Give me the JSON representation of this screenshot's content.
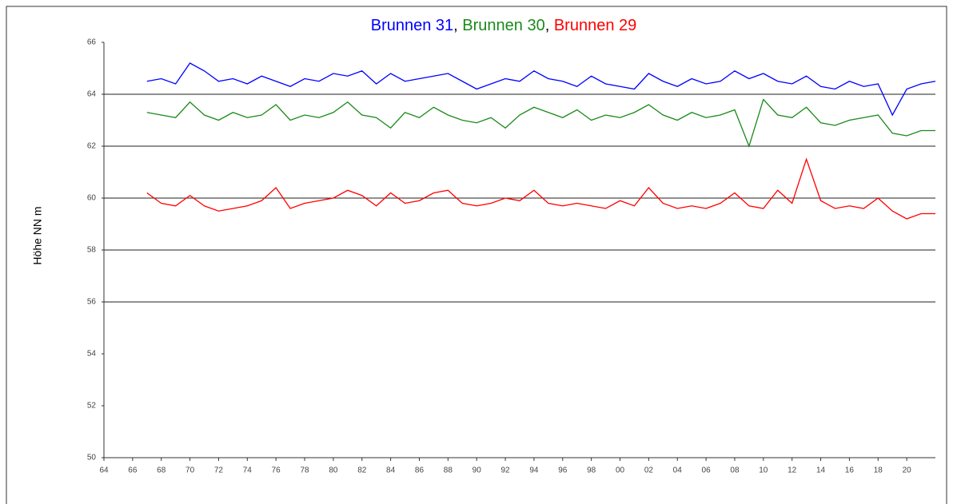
{
  "chart_data": {
    "type": "line",
    "title": "Brunnen 31, Brunnen 30, Brunnen 29",
    "ylabel": "Höhe NN m",
    "x": [
      1967,
      1968,
      1969,
      1970,
      1971,
      1972,
      1973,
      1974,
      1975,
      1976,
      1977,
      1978,
      1979,
      1980,
      1981,
      1982,
      1983,
      1984,
      1985,
      1986,
      1987,
      1988,
      1989,
      1990,
      1991,
      1992,
      1993,
      1994,
      1995,
      1996,
      1997,
      1998,
      1999,
      2000,
      2001,
      2002,
      2003,
      2004,
      2005,
      2006,
      2007,
      2008,
      2009,
      2010,
      2011,
      2012,
      2013,
      2014,
      2015,
      2016,
      2017,
      2018,
      2019,
      2020,
      2021,
      2022
    ],
    "series": [
      {
        "name": "Brunnen 31",
        "color": "#0000ff",
        "values": [
          64.5,
          64.6,
          64.4,
          65.2,
          64.9,
          64.5,
          64.6,
          64.4,
          64.7,
          64.5,
          64.3,
          64.6,
          64.5,
          64.8,
          64.7,
          64.9,
          64.4,
          64.8,
          64.5,
          64.6,
          64.7,
          64.8,
          64.5,
          64.2,
          64.4,
          64.6,
          64.5,
          64.9,
          64.6,
          64.5,
          64.3,
          64.7,
          64.4,
          64.3,
          64.2,
          64.8,
          64.5,
          64.3,
          64.6,
          64.4,
          64.5,
          64.9,
          64.6,
          64.8,
          64.5,
          64.4,
          64.7,
          64.3,
          64.2,
          64.5,
          64.3,
          64.4,
          63.2,
          64.2,
          64.4,
          64.5
        ]
      },
      {
        "name": "Brunnen 30",
        "color": "#1a8a1a",
        "values": [
          63.3,
          63.2,
          63.1,
          63.7,
          63.2,
          63.0,
          63.3,
          63.1,
          63.2,
          63.6,
          63.0,
          63.2,
          63.1,
          63.3,
          63.7,
          63.2,
          63.1,
          62.7,
          63.3,
          63.1,
          63.5,
          63.2,
          63.0,
          62.9,
          63.1,
          62.7,
          63.2,
          63.5,
          63.3,
          63.1,
          63.4,
          63.0,
          63.2,
          63.1,
          63.3,
          63.6,
          63.2,
          63.0,
          63.3,
          63.1,
          63.2,
          63.4,
          62.0,
          63.8,
          63.2,
          63.1,
          63.5,
          62.9,
          62.8,
          63.0,
          63.1,
          63.2,
          62.5,
          62.4,
          62.6,
          62.6
        ]
      },
      {
        "name": "Brunnen 29",
        "color": "#ff0000",
        "values": [
          60.2,
          59.8,
          59.7,
          60.1,
          59.7,
          59.5,
          59.6,
          59.7,
          59.9,
          60.4,
          59.6,
          59.8,
          59.9,
          60.0,
          60.3,
          60.1,
          59.7,
          60.2,
          59.8,
          59.9,
          60.2,
          60.3,
          59.8,
          59.7,
          59.8,
          60.0,
          59.9,
          60.3,
          59.8,
          59.7,
          59.8,
          59.7,
          59.6,
          59.9,
          59.7,
          60.4,
          59.8,
          59.6,
          59.7,
          59.6,
          59.8,
          60.2,
          59.7,
          59.6,
          60.3,
          59.8,
          61.5,
          59.9,
          59.6,
          59.7,
          59.6,
          60.0,
          59.5,
          59.2,
          59.4,
          59.4
        ]
      }
    ],
    "xlim": [
      1964,
      2022
    ],
    "xticks": [
      {
        "value": 1964,
        "label": "64"
      },
      {
        "value": 1966,
        "label": "66"
      },
      {
        "value": 1968,
        "label": "68"
      },
      {
        "value": 1970,
        "label": "70"
      },
      {
        "value": 1972,
        "label": "72"
      },
      {
        "value": 1974,
        "label": "74"
      },
      {
        "value": 1976,
        "label": "76"
      },
      {
        "value": 1978,
        "label": "78"
      },
      {
        "value": 1980,
        "label": "80"
      },
      {
        "value": 1982,
        "label": "82"
      },
      {
        "value": 1984,
        "label": "84"
      },
      {
        "value": 1986,
        "label": "86"
      },
      {
        "value": 1988,
        "label": "88"
      },
      {
        "value": 1990,
        "label": "90"
      },
      {
        "value": 1992,
        "label": "92"
      },
      {
        "value": 1994,
        "label": "94"
      },
      {
        "value": 1996,
        "label": "96"
      },
      {
        "value": 1998,
        "label": "98"
      },
      {
        "value": 2000,
        "label": "00"
      },
      {
        "value": 2002,
        "label": "02"
      },
      {
        "value": 2004,
        "label": "04"
      },
      {
        "value": 2006,
        "label": "06"
      },
      {
        "value": 2008,
        "label": "08"
      },
      {
        "value": 2010,
        "label": "10"
      },
      {
        "value": 2012,
        "label": "12"
      },
      {
        "value": 2014,
        "label": "14"
      },
      {
        "value": 2016,
        "label": "16"
      },
      {
        "value": 2018,
        "label": "18"
      },
      {
        "value": 2020,
        "label": "20"
      }
    ],
    "ylim": [
      50,
      66
    ],
    "yticks": [
      50,
      52,
      54,
      56,
      58,
      60,
      62,
      64,
      66
    ],
    "gridlines": [
      56,
      58,
      60,
      62,
      64
    ]
  }
}
